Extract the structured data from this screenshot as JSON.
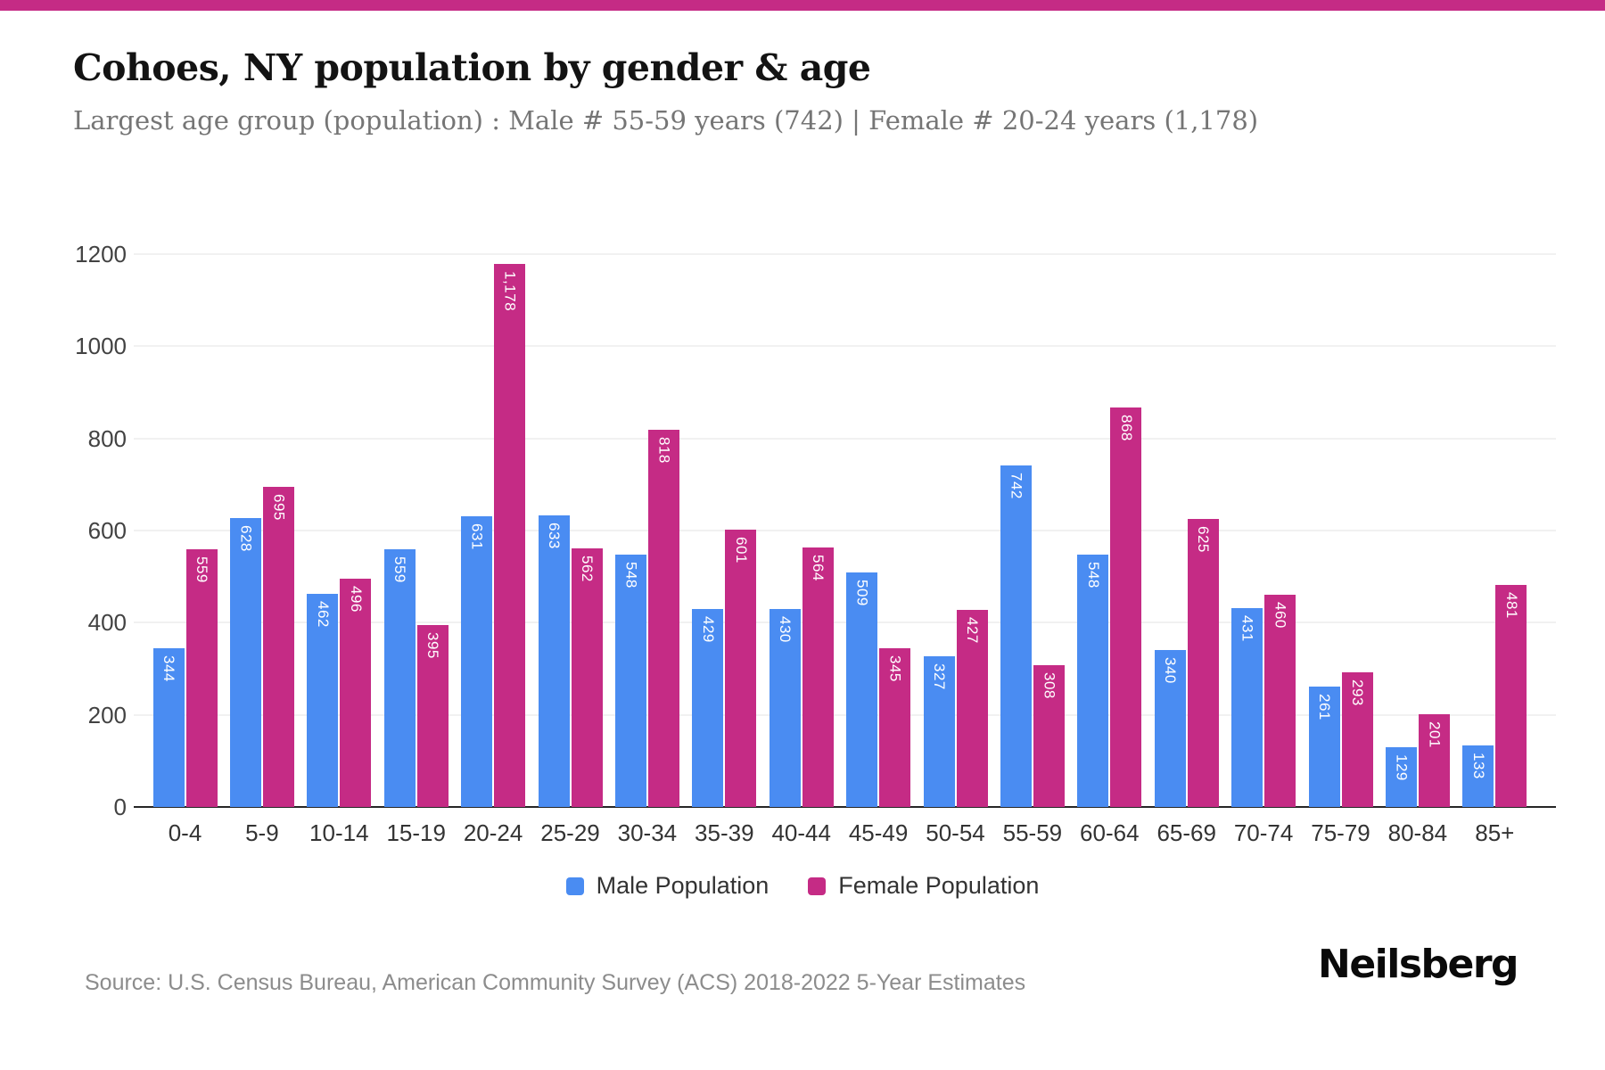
{
  "page": {
    "top_bar_color": "#c52b85"
  },
  "header": {
    "title": "Cohoes, NY population by gender & age",
    "subtitle": "Largest age group (population) : Male # 55-59 years (742) | Female # 20-24 years (1,178)"
  },
  "chart_data": {
    "type": "bar",
    "title": "Cohoes, NY population by gender & age",
    "categories": [
      "0-4",
      "5-9",
      "10-14",
      "15-19",
      "20-24",
      "25-29",
      "30-34",
      "35-39",
      "40-44",
      "45-49",
      "50-54",
      "55-59",
      "60-64",
      "65-69",
      "70-74",
      "75-79",
      "80-84",
      "85+"
    ],
    "series": [
      {
        "name": "Male Population",
        "color": "#4a8cf2",
        "values": [
          344,
          628,
          462,
          559,
          631,
          633,
          548,
          429,
          430,
          509,
          327,
          742,
          548,
          340,
          431,
          261,
          129,
          133
        ]
      },
      {
        "name": "Female Population",
        "color": "#c52b85",
        "values": [
          559,
          695,
          496,
          395,
          1178,
          562,
          818,
          601,
          564,
          345,
          427,
          308,
          868,
          625,
          460,
          293,
          201,
          481
        ]
      }
    ],
    "xlabel": "",
    "ylabel": "",
    "ylim": [
      0,
      1200
    ],
    "yticks": [
      0,
      200,
      400,
      600,
      800,
      1000,
      1200
    ],
    "grid": true,
    "legend_position": "bottom",
    "bar_label_color": "#ffffff"
  },
  "footer": {
    "source": "Source: U.S. Census Bureau, American Community Survey (ACS) 2018-2022 5-Year Estimates",
    "logo": "Neilsberg"
  }
}
